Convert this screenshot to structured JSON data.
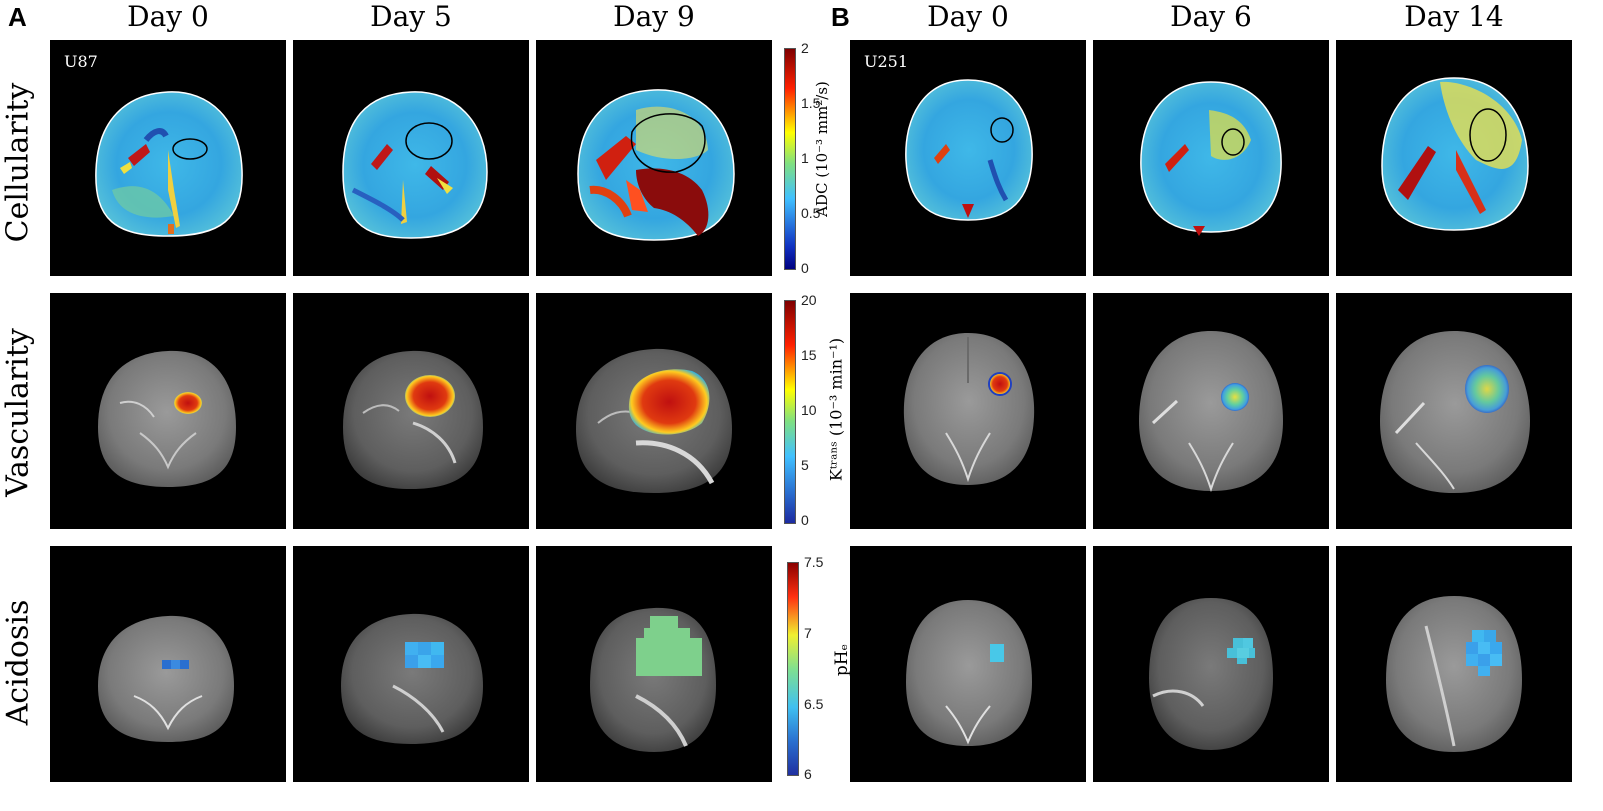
{
  "panels": {
    "A": {
      "letter": "A",
      "cell_line": "U87",
      "days": [
        "Day 0",
        "Day 5",
        "Day 9"
      ]
    },
    "B": {
      "letter": "B",
      "cell_line": "U251",
      "days": [
        "Day 0",
        "Day 6",
        "Day 14"
      ]
    }
  },
  "rows": [
    "Cellularity",
    "Vascularity",
    "Acidosis"
  ],
  "colorbars": {
    "adc": {
      "label": "ADC (10⁻³ mm²/s)",
      "ticks": [
        "2",
        "1.5",
        "1",
        "0.5",
        "0"
      ]
    },
    "ktrans": {
      "label": "Kᵗʳᵃⁿˢ (10⁻³ min⁻¹)",
      "ticks": [
        "20",
        "15",
        "10",
        "5",
        "0"
      ]
    },
    "phe": {
      "label": "pHₑ",
      "ticks": [
        "7.5",
        "7",
        "6.5",
        "6"
      ]
    }
  },
  "colors": {
    "jet_dark_red": "#7f0000",
    "jet_red": "#ff2000",
    "jet_yellow": "#ffff00",
    "jet_cyan": "#40d0ff",
    "jet_blue": "#1030c0",
    "jet_dark_blue": "#000080"
  }
}
